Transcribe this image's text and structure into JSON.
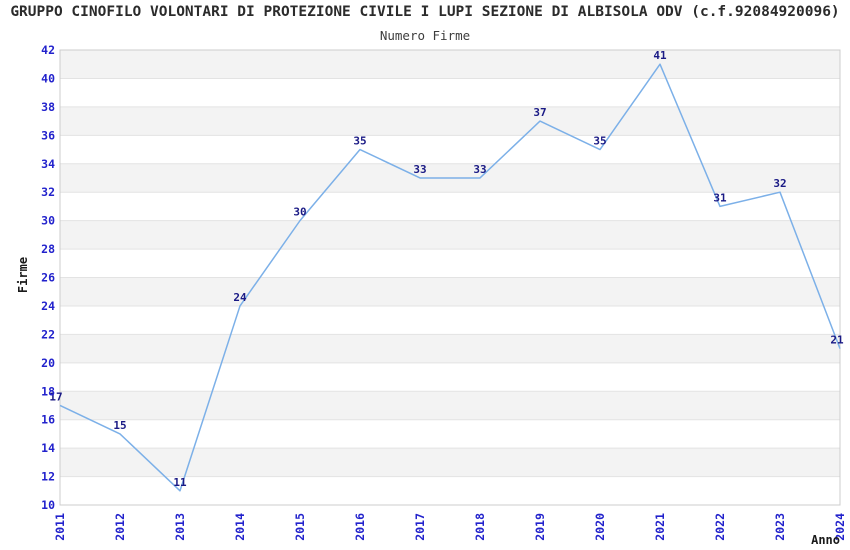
{
  "chart_data": {
    "type": "line",
    "title": "GRUPPO CINOFILO VOLONTARI DI PROTEZIONE CIVILE I LUPI SEZIONE DI ALBISOLA ODV (c.f.92084920096)",
    "subtitle": "Numero Firme",
    "xlabel": "Anno",
    "ylabel": "Firme",
    "categories": [
      "2011",
      "2012",
      "2013",
      "2014",
      "2015",
      "2016",
      "2017",
      "2018",
      "2019",
      "2020",
      "2021",
      "2022",
      "2023",
      "2024"
    ],
    "values": [
      17,
      15,
      11,
      24,
      30,
      35,
      33,
      33,
      37,
      35,
      41,
      31,
      32,
      21
    ],
    "ylim": [
      10,
      42
    ],
    "ytick_step": 2,
    "grid": true,
    "legend": "none",
    "colors": {
      "line": "#7cb0e8",
      "point_label": "#1a1a85",
      "tick_label": "#2222cc",
      "band_gray": "#f3f3f3",
      "band_white": "#ffffff",
      "gridline": "#e3e3e3",
      "plot_border": "#cccccc",
      "title": "#2b2b2b",
      "subtitle": "#3d3d3d",
      "axis_label": "#1a1a1a"
    }
  }
}
